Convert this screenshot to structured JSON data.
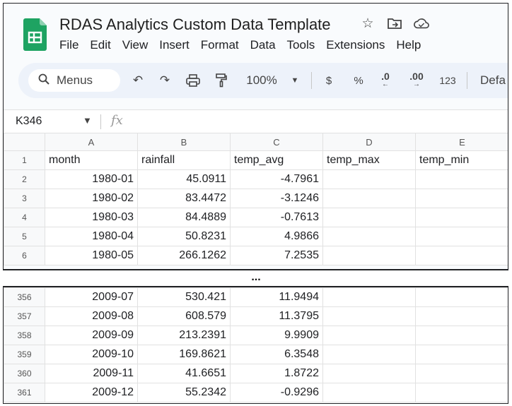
{
  "doc": {
    "title": "RDAS Analytics Custom Data Template",
    "menus": [
      "File",
      "Edit",
      "View",
      "Insert",
      "Format",
      "Data",
      "Tools",
      "Extensions",
      "Help"
    ]
  },
  "toolbar": {
    "search_label": "Menus",
    "zoom": "100%",
    "currency": "$",
    "percent": "%",
    "decrease_decimal": ".0",
    "increase_decimal": ".00",
    "number_format": "123",
    "font": "Defa"
  },
  "formula_bar": {
    "cell_ref": "K346",
    "fx": "fx"
  },
  "columns": [
    "A",
    "B",
    "C",
    "D",
    "E"
  ],
  "header_row": {
    "row": "1",
    "cells": [
      "month",
      "rainfall",
      "temp_avg",
      "temp_max",
      "temp_min"
    ]
  },
  "rows_top": [
    {
      "row": "2",
      "month": "1980-01",
      "rainfall": "45.0911",
      "temp_avg": "-4.7961"
    },
    {
      "row": "3",
      "month": "1980-02",
      "rainfall": "83.4472",
      "temp_avg": "-3.1246"
    },
    {
      "row": "4",
      "month": "1980-03",
      "rainfall": "84.4889",
      "temp_avg": "-0.7613"
    },
    {
      "row": "5",
      "month": "1980-04",
      "rainfall": "50.8231",
      "temp_avg": "4.9866"
    },
    {
      "row": "6",
      "month": "1980-05",
      "rainfall": "266.1262",
      "temp_avg": "7.2535"
    }
  ],
  "gap_marker": "...",
  "rows_bottom": [
    {
      "row": "356",
      "month": "2009-07",
      "rainfall": "530.421",
      "temp_avg": "11.9494"
    },
    {
      "row": "357",
      "month": "2009-08",
      "rainfall": "608.579",
      "temp_avg": "11.3795"
    },
    {
      "row": "358",
      "month": "2009-09",
      "rainfall": "213.2391",
      "temp_avg": "9.9909"
    },
    {
      "row": "359",
      "month": "2009-10",
      "rainfall": "169.8621",
      "temp_avg": "6.3548"
    },
    {
      "row": "360",
      "month": "2009-11",
      "rainfall": "41.6651",
      "temp_avg": "1.8722"
    },
    {
      "row": "361",
      "month": "2009-12",
      "rainfall": "55.2342",
      "temp_avg": "-0.9296"
    }
  ],
  "colors": {
    "sheets_green": "#1ea362",
    "toolbar_bg": "#edf2fa",
    "header_bg": "#f8f9fa"
  }
}
